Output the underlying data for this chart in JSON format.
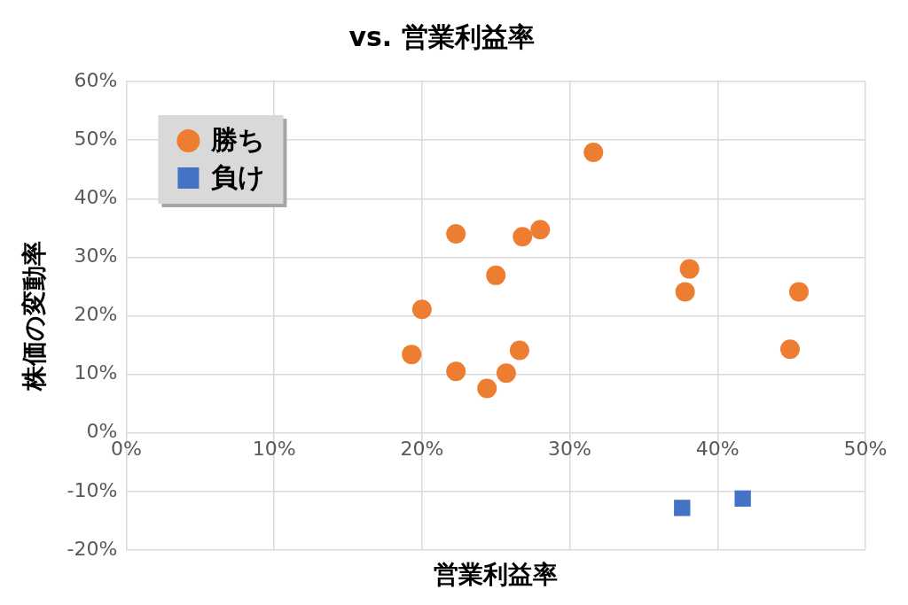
{
  "chart_data": {
    "type": "scatter",
    "title": "vs. 営業利益率",
    "xlabel": "営業利益率",
    "ylabel": "株価の変動率",
    "xlim": [
      0,
      50
    ],
    "xticks": [
      {
        "value": 0,
        "label": "0%"
      },
      {
        "value": 10,
        "label": "10%"
      },
      {
        "value": 20,
        "label": "20%"
      },
      {
        "value": 30,
        "label": "30%"
      },
      {
        "value": 40,
        "label": "40%"
      },
      {
        "value": 50,
        "label": "50%"
      }
    ],
    "ylim": [
      -20,
      60
    ],
    "yticks": [
      {
        "value": -20,
        "label": "-20%"
      },
      {
        "value": -10,
        "label": "-10%"
      },
      {
        "value": 0,
        "label": "0%"
      },
      {
        "value": 10,
        "label": "10%"
      },
      {
        "value": 20,
        "label": "20%"
      },
      {
        "value": 30,
        "label": "30%"
      },
      {
        "value": 40,
        "label": "40%"
      },
      {
        "value": 50,
        "label": "50%"
      },
      {
        "value": 60,
        "label": "60%"
      }
    ],
    "grid": true,
    "legend": "top left",
    "series": [
      {
        "name": "勝ち",
        "color": "#ed7d31",
        "marker": "circle",
        "x": [
          19.3,
          20.0,
          22.3,
          22.3,
          24.4,
          25.0,
          25.7,
          26.6,
          26.8,
          28.0,
          31.6,
          37.8,
          38.1,
          44.9,
          45.5
        ],
        "values": [
          13.4,
          21.1,
          34.0,
          10.5,
          7.6,
          26.9,
          10.2,
          14.1,
          33.5,
          34.7,
          47.9,
          24.1,
          28.0,
          14.3,
          24.1
        ]
      },
      {
        "name": "負け",
        "color": "#4472c4",
        "marker": "square",
        "x": [
          37.6,
          41.7
        ],
        "values": [
          -12.8,
          -11.2
        ]
      }
    ]
  }
}
